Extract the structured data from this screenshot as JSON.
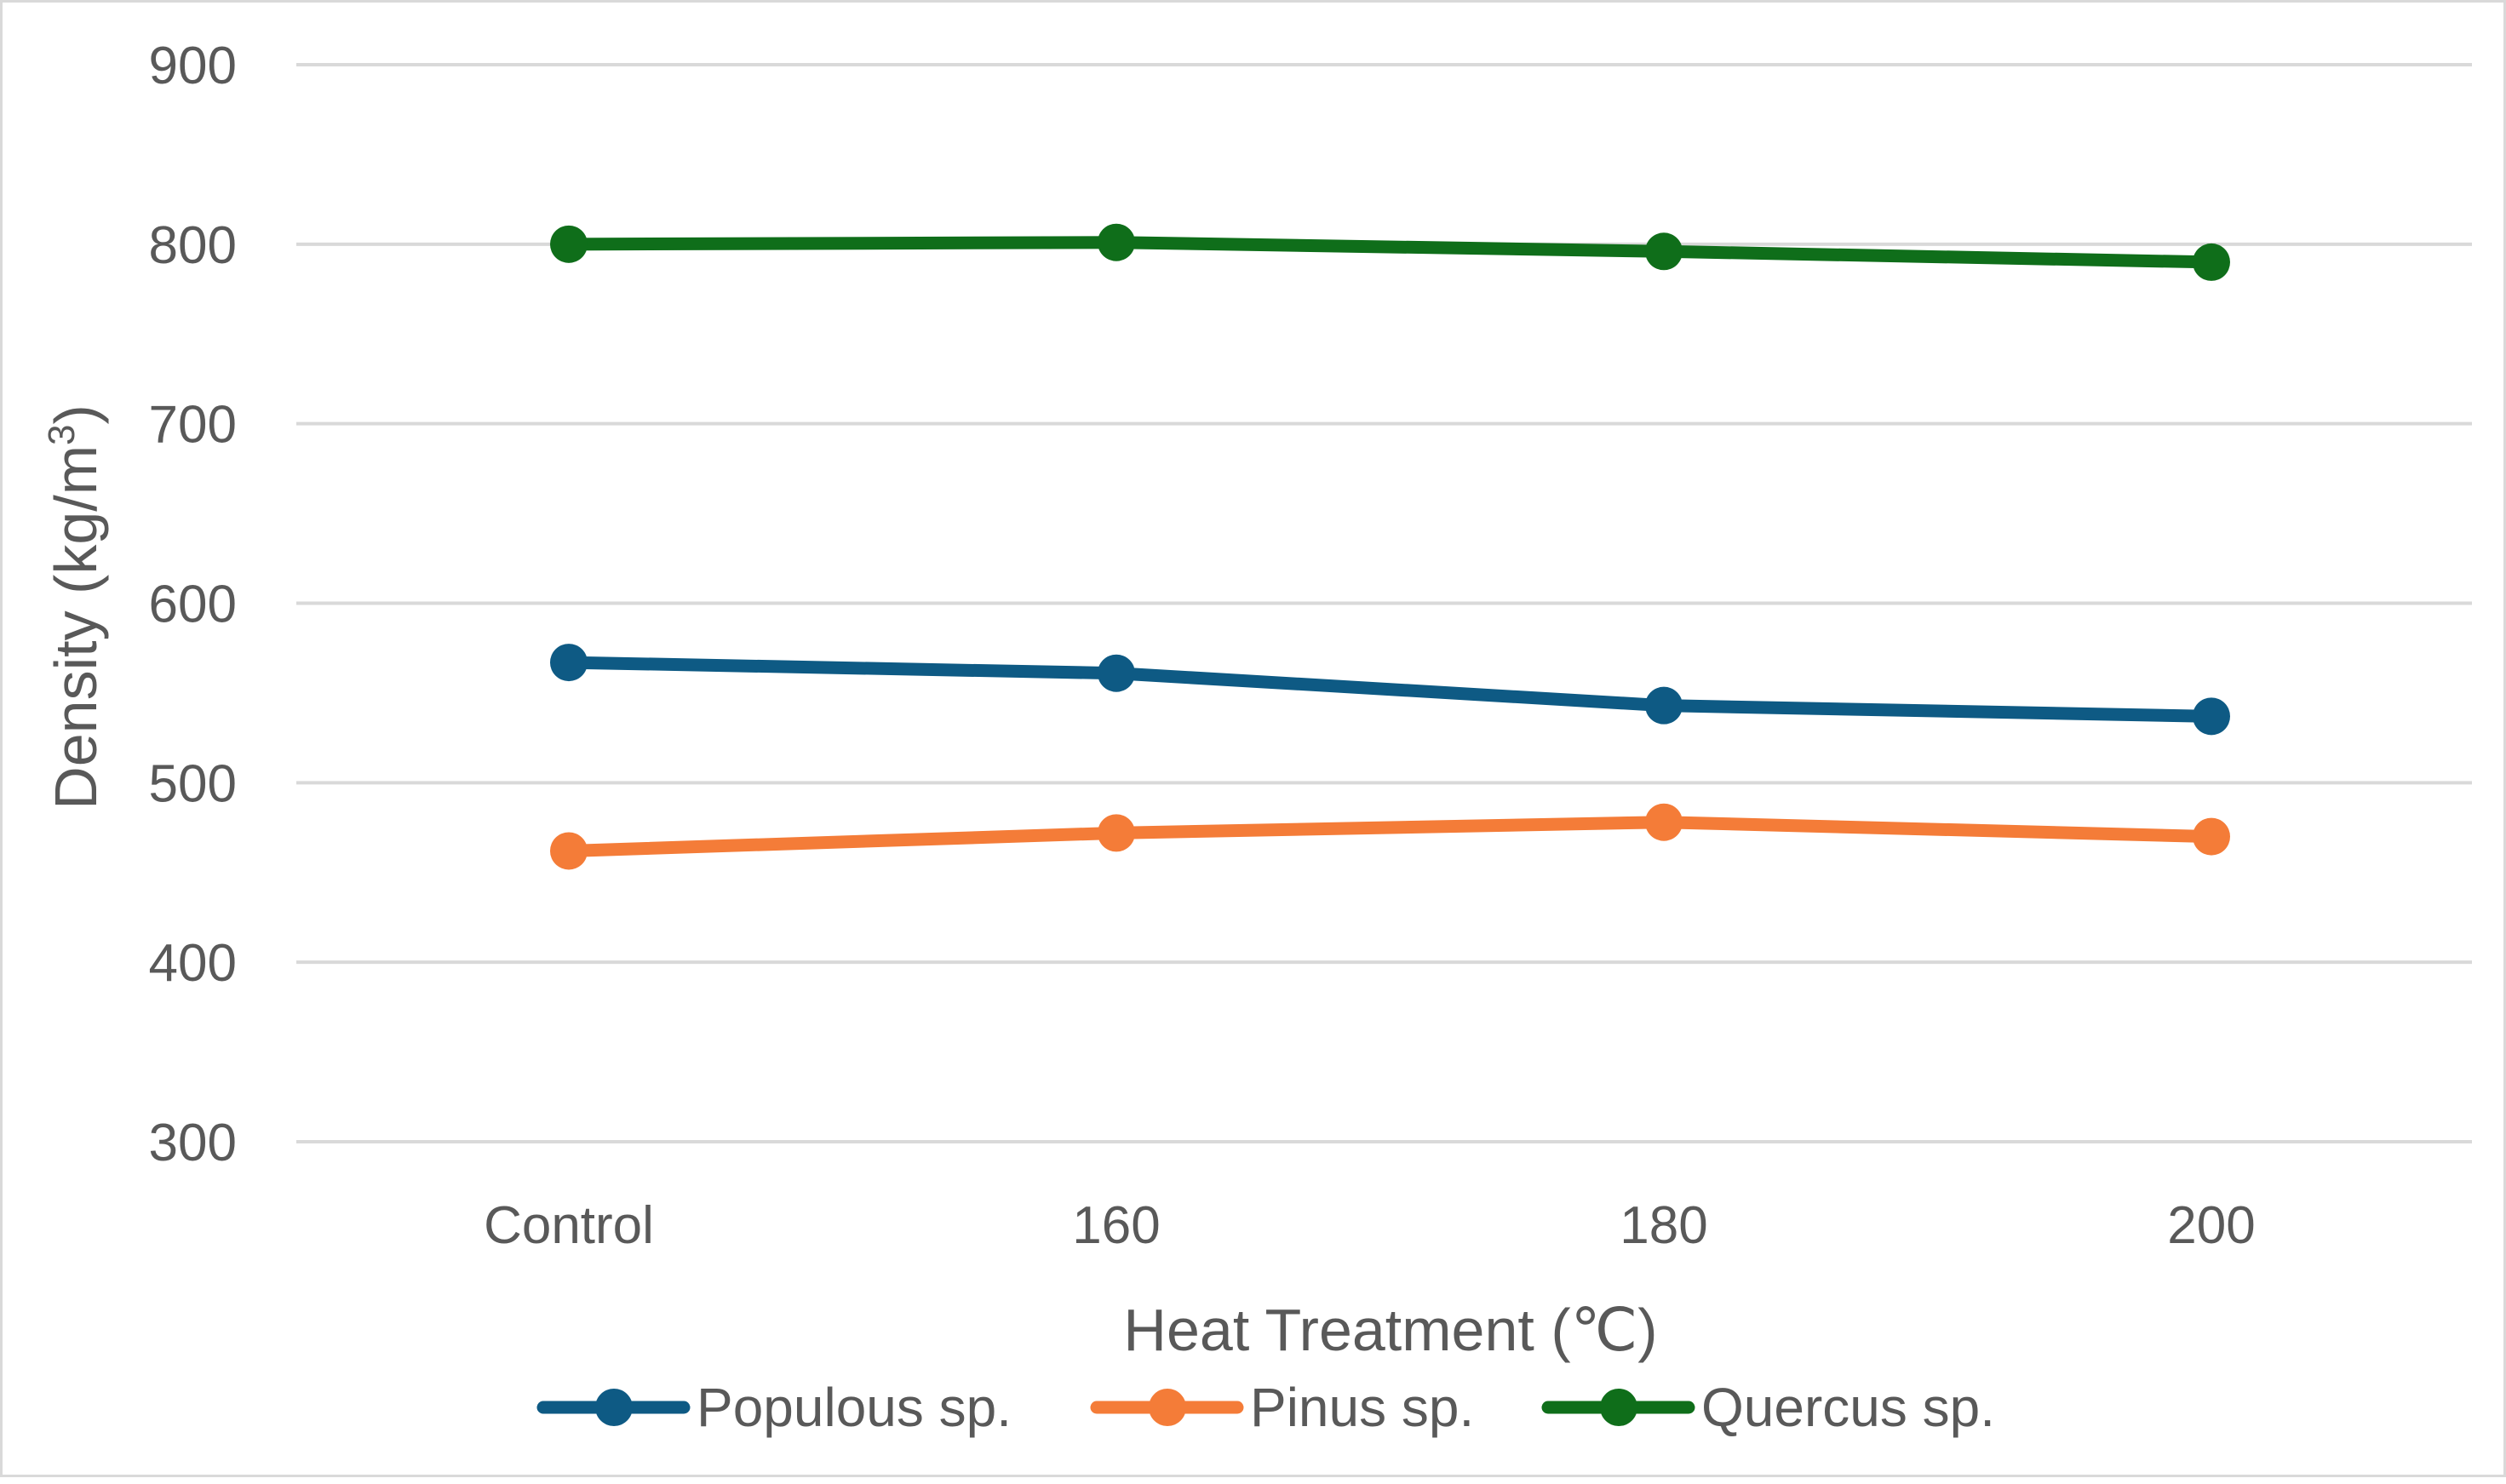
{
  "chart_data": {
    "type": "line",
    "title": "",
    "xlabel": "Heat Treatment (℃)",
    "ylabel_main": "Density  (kg/m",
    "ylabel_sup": "3",
    "ylabel_end": ")",
    "categories": [
      "Control",
      "160",
      "180",
      "200"
    ],
    "ylim": [
      300,
      900
    ],
    "yticks": [
      "300",
      "400",
      "500",
      "600",
      "700",
      "800",
      "900"
    ],
    "grid": true,
    "legend_position": "bottom",
    "series": [
      {
        "name": "Populous sp.",
        "color": "#0e5a84",
        "values": [
          567,
          561,
          543,
          537
        ]
      },
      {
        "name": "Pinus sp.",
        "color": "#f47c38",
        "values": [
          462,
          472,
          478,
          470
        ]
      },
      {
        "name": "Quercus sp.",
        "color": "#0f6e1a",
        "values": [
          800,
          801,
          796,
          790
        ]
      }
    ]
  }
}
